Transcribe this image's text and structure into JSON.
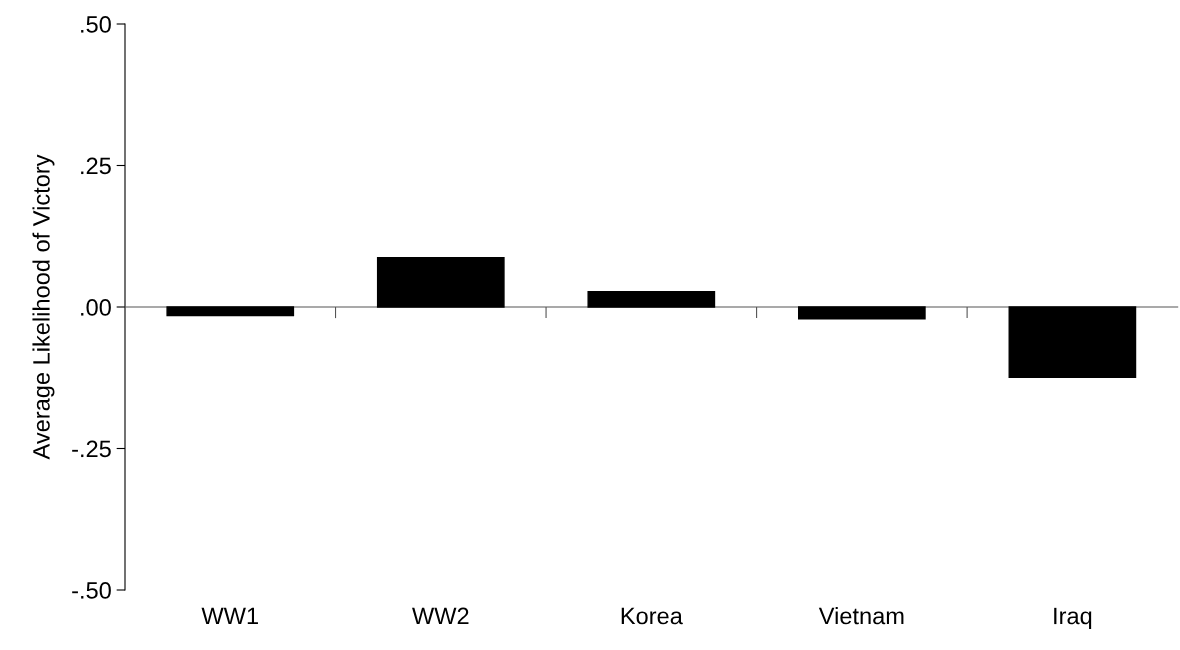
{
  "chart_data": {
    "type": "bar",
    "ylabel": "Average Likelihood of Victory",
    "categories": [
      "WW1",
      "WW2",
      "Korea",
      "Vietnam",
      "Iraq"
    ],
    "values": [
      -0.015,
      0.087,
      0.027,
      -0.021,
      -0.124
    ],
    "color": "#000000",
    "ylim": [
      -0.5,
      0.5
    ],
    "yticks": [
      {
        "value": -0.5,
        "label": "-.50"
      },
      {
        "value": -0.25,
        "label": "-.25"
      },
      {
        "value": 0,
        "label": ".00"
      },
      {
        "value": 0.25,
        "label": ".25"
      },
      {
        "value": 0.5,
        "label": ".50"
      }
    ]
  }
}
